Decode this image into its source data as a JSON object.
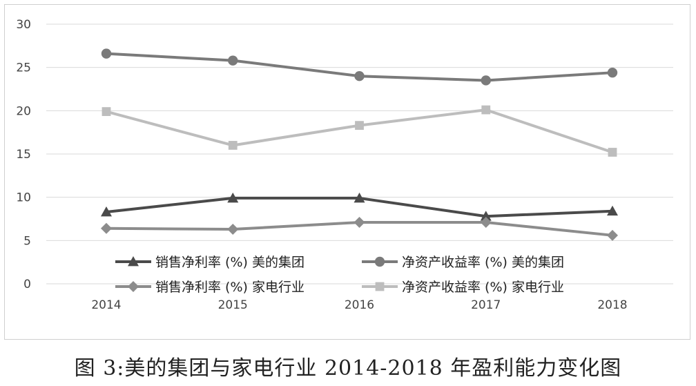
{
  "chart_data": {
    "type": "line",
    "x": [
      "2014",
      "2015",
      "2016",
      "2017",
      "2018"
    ],
    "ylim": [
      0,
      30
    ],
    "yticks": [
      0,
      5,
      10,
      15,
      20,
      25,
      30
    ],
    "grid": true,
    "legend_position": "bottom-inside",
    "series": [
      {
        "name": "销售净利率 (%) 美的集团",
        "values": [
          8.3,
          9.9,
          9.9,
          7.8,
          8.4
        ],
        "marker": "triangle",
        "color": "#4a4a4a"
      },
      {
        "name": "净资产收益率 (%) 美的集团",
        "values": [
          26.6,
          25.8,
          24.0,
          23.5,
          24.4
        ],
        "marker": "circle",
        "color": "#7a7a7a"
      },
      {
        "name": "销售净利率 (%) 家电行业",
        "values": [
          6.4,
          6.3,
          7.1,
          7.1,
          5.6
        ],
        "marker": "diamond",
        "color": "#8c8c8c"
      },
      {
        "name": "净资产收益率 (%) 家电行业",
        "values": [
          19.9,
          16.0,
          18.3,
          20.1,
          15.2
        ],
        "marker": "square",
        "color": "#bdbdbd"
      }
    ]
  },
  "caption": "图 3:美的集团与家电行业 2014-2018 年盈利能力变化图"
}
